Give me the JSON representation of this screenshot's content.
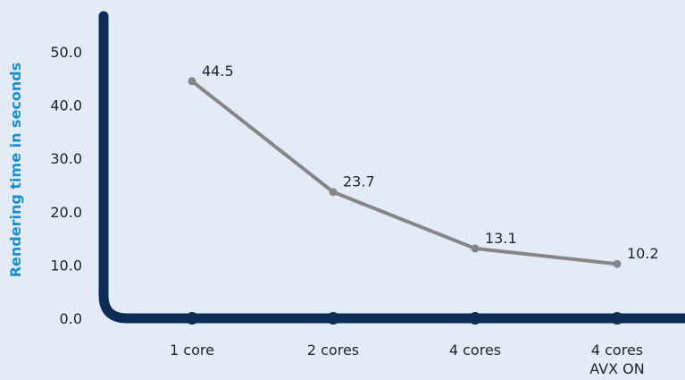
{
  "chart_data": {
    "type": "line",
    "title": "",
    "xlabel": "",
    "ylabel": "Rendering time in seconds",
    "categories": [
      [
        "1 core"
      ],
      [
        "2 cores"
      ],
      [
        "4 cores"
      ],
      [
        "4 cores",
        "AVX ON"
      ]
    ],
    "series": [
      {
        "values": [
          44.5,
          23.7,
          13.1,
          10.2
        ]
      }
    ],
    "data_labels": [
      "44.5",
      "23.7",
      "13.1",
      "10.2"
    ],
    "y_ticks": [
      "0.0",
      "10.0",
      "20.0",
      "30.0",
      "40.0",
      "50.0"
    ],
    "ylim": [
      0,
      50
    ],
    "grid": false,
    "legend": "none",
    "colors": {
      "background": "#e3ecf6",
      "axis": "#0d2d57",
      "line": "#868686",
      "ylabel": "#1a8fd0",
      "text": "#1b2230"
    }
  }
}
